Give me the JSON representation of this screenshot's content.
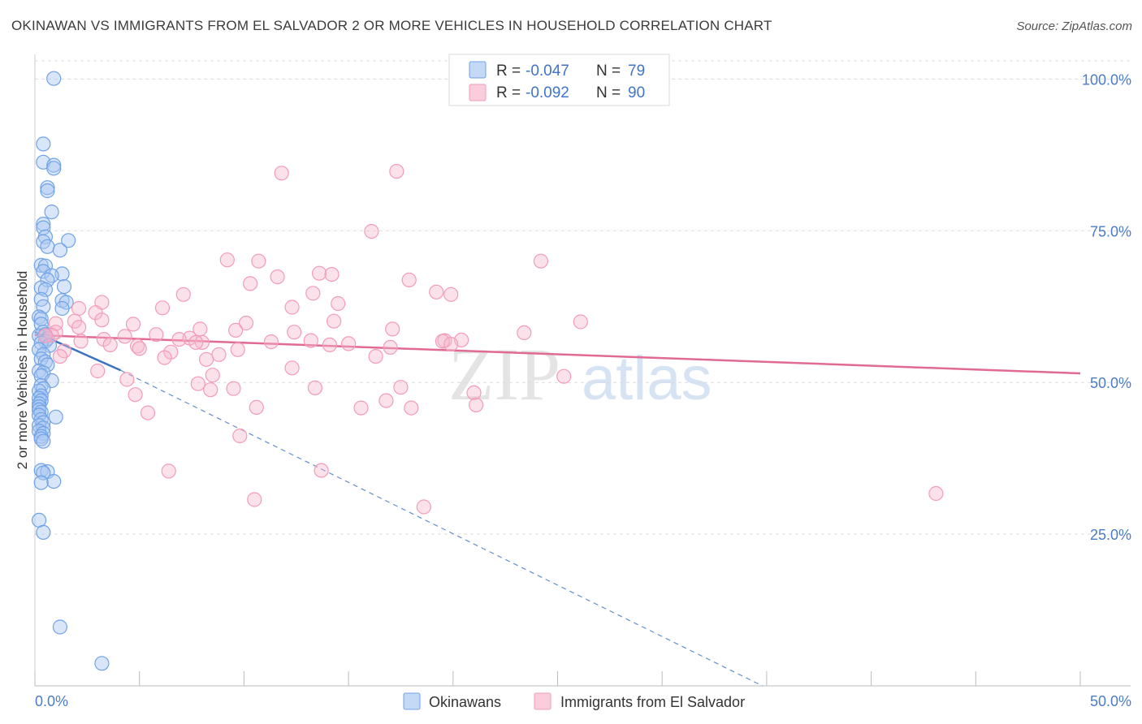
{
  "header": {
    "title": "OKINAWAN VS IMMIGRANTS FROM EL SALVADOR 2 OR MORE VEHICLES IN HOUSEHOLD CORRELATION CHART",
    "source": "Source: ZipAtlas.com"
  },
  "watermark": {
    "zip": "ZIP",
    "atlas": "atlas"
  },
  "chart_data": {
    "type": "scatter",
    "title": "OKINAWAN VS IMMIGRANTS FROM EL SALVADOR 2 OR MORE VEHICLES IN HOUSEHOLD CORRELATION CHART",
    "xlabel": "",
    "ylabel": "2 or more Vehicles in Household",
    "xlim": [
      0,
      50
    ],
    "ylim": [
      0,
      103
    ],
    "x_tick_labels": {
      "min": "0.0%",
      "max": "50.0%"
    },
    "y_ticks": [
      {
        "value": 25,
        "label": "25.0%"
      },
      {
        "value": 50,
        "label": "50.0%"
      },
      {
        "value": 75,
        "label": "75.0%"
      },
      {
        "value": 100,
        "label": "100.0%"
      }
    ],
    "grid": true,
    "legend_position": "top-center",
    "stats_legend": [
      {
        "r_label": "R = ",
        "r_value": "-0.047",
        "n_label": "N = ",
        "n_value": "79",
        "color": "#a9c9f1"
      },
      {
        "r_label": "R = ",
        "r_value": "-0.092",
        "n_label": "N = ",
        "n_value": "90",
        "color": "#f5b5c9"
      }
    ],
    "series": [
      {
        "name": "Okinawans",
        "color": "#6fa3e6",
        "line_color": "#3b72c4",
        "trend": {
          "x0": 0,
          "y0": 58.3,
          "x1": 4.1,
          "y1": 52.0,
          "dash_x1": 34.8,
          "dash_y1": 0
        },
        "points": [
          [
            0.9,
            100.1
          ],
          [
            0.4,
            89.3
          ],
          [
            0.4,
            86.3
          ],
          [
            0.9,
            85.8
          ],
          [
            0.9,
            85.3
          ],
          [
            0.6,
            82.1
          ],
          [
            0.6,
            81.6
          ],
          [
            0.8,
            78.1
          ],
          [
            0.4,
            76.1
          ],
          [
            0.4,
            75.5
          ],
          [
            0.5,
            74.0
          ],
          [
            1.6,
            73.4
          ],
          [
            0.4,
            73.2
          ],
          [
            0.6,
            72.4
          ],
          [
            1.2,
            71.8
          ],
          [
            0.3,
            69.3
          ],
          [
            0.5,
            69.2
          ],
          [
            0.4,
            68.3
          ],
          [
            1.3,
            67.9
          ],
          [
            0.8,
            67.6
          ],
          [
            0.6,
            66.9
          ],
          [
            0.3,
            65.6
          ],
          [
            0.5,
            65.3
          ],
          [
            1.4,
            65.8
          ],
          [
            0.3,
            63.7
          ],
          [
            1.3,
            63.5
          ],
          [
            1.5,
            63.2
          ],
          [
            0.4,
            62.5
          ],
          [
            1.3,
            62.2
          ],
          [
            0.2,
            60.8
          ],
          [
            0.3,
            60.5
          ],
          [
            0.3,
            59.6
          ],
          [
            0.4,
            58.3
          ],
          [
            0.2,
            57.7
          ],
          [
            0.5,
            57.9
          ],
          [
            0.6,
            57.2
          ],
          [
            0.5,
            56.8
          ],
          [
            0.3,
            56.5
          ],
          [
            0.7,
            56.1
          ],
          [
            0.2,
            55.4
          ],
          [
            0.4,
            54.6
          ],
          [
            0.3,
            53.9
          ],
          [
            0.5,
            53.4
          ],
          [
            0.6,
            52.9
          ],
          [
            0.2,
            51.9
          ],
          [
            0.4,
            51.6
          ],
          [
            0.3,
            51.1
          ],
          [
            0.8,
            50.3
          ],
          [
            0.3,
            49.5
          ],
          [
            0.4,
            49.0
          ],
          [
            0.2,
            48.6
          ],
          [
            0.3,
            47.8
          ],
          [
            0.2,
            47.4
          ],
          [
            0.3,
            47.0
          ],
          [
            0.2,
            46.5
          ],
          [
            0.2,
            46.0
          ],
          [
            0.2,
            45.5
          ],
          [
            0.3,
            45.1
          ],
          [
            0.2,
            44.6
          ],
          [
            1.0,
            44.3
          ],
          [
            0.3,
            43.9
          ],
          [
            0.4,
            43.4
          ],
          [
            0.2,
            42.9
          ],
          [
            0.4,
            42.5
          ],
          [
            0.2,
            42.0
          ],
          [
            0.4,
            41.6
          ],
          [
            0.3,
            41.1
          ],
          [
            0.3,
            40.7
          ],
          [
            0.4,
            40.3
          ],
          [
            0.3,
            35.5
          ],
          [
            0.6,
            35.3
          ],
          [
            0.4,
            35.1
          ],
          [
            0.9,
            33.7
          ],
          [
            0.3,
            33.5
          ],
          [
            0.2,
            27.3
          ],
          [
            0.4,
            25.3
          ],
          [
            1.2,
            9.7
          ],
          [
            3.2,
            3.7
          ]
        ]
      },
      {
        "name": "Immigrants from El Salvador",
        "color": "#f39bb9",
        "line_color": "#e06a93",
        "trend": {
          "x0": 0,
          "y0": 57.8,
          "x1": 50,
          "y1": 51.5
        },
        "points": [
          [
            11.8,
            84.5
          ],
          [
            17.3,
            84.8
          ],
          [
            16.1,
            74.9
          ],
          [
            9.2,
            70.2
          ],
          [
            10.7,
            70.0
          ],
          [
            24.2,
            70.0
          ],
          [
            11.6,
            67.4
          ],
          [
            13.6,
            68.0
          ],
          [
            14.2,
            67.8
          ],
          [
            10.3,
            66.3
          ],
          [
            17.9,
            66.9
          ],
          [
            7.1,
            64.5
          ],
          [
            13.3,
            64.7
          ],
          [
            19.2,
            64.9
          ],
          [
            19.9,
            64.5
          ],
          [
            3.2,
            63.2
          ],
          [
            14.5,
            63.0
          ],
          [
            2.1,
            62.2
          ],
          [
            6.1,
            62.3
          ],
          [
            12.3,
            62.4
          ],
          [
            2.9,
            61.5
          ],
          [
            1.9,
            60.1
          ],
          [
            3.2,
            60.3
          ],
          [
            14.3,
            60.1
          ],
          [
            26.1,
            60.0
          ],
          [
            1.0,
            59.7
          ],
          [
            4.7,
            59.6
          ],
          [
            10.1,
            59.8
          ],
          [
            2.1,
            59.1
          ],
          [
            7.9,
            58.8
          ],
          [
            9.6,
            58.6
          ],
          [
            12.4,
            58.3
          ],
          [
            17.1,
            58.8
          ],
          [
            23.4,
            58.2
          ],
          [
            1.0,
            58.3
          ],
          [
            0.8,
            57.8
          ],
          [
            5.8,
            57.9
          ],
          [
            4.3,
            57.6
          ],
          [
            0.5,
            57.7
          ],
          [
            7.4,
            57.3
          ],
          [
            13.2,
            56.9
          ],
          [
            3.3,
            57.1
          ],
          [
            2.2,
            56.8
          ],
          [
            8.0,
            56.6
          ],
          [
            15.0,
            56.4
          ],
          [
            19.6,
            56.9
          ],
          [
            20.4,
            57.0
          ],
          [
            6.9,
            57.1
          ],
          [
            7.7,
            56.6
          ],
          [
            3.6,
            56.2
          ],
          [
            11.3,
            56.7
          ],
          [
            4.9,
            56.0
          ],
          [
            5.0,
            55.6
          ],
          [
            14.1,
            56.2
          ],
          [
            19.5,
            56.8
          ],
          [
            19.9,
            56.3
          ],
          [
            17.0,
            55.8
          ],
          [
            1.4,
            55.2
          ],
          [
            9.7,
            55.4
          ],
          [
            6.5,
            55.0
          ],
          [
            8.8,
            54.6
          ],
          [
            1.2,
            54.3
          ],
          [
            16.3,
            54.3
          ],
          [
            6.2,
            54.1
          ],
          [
            8.2,
            53.8
          ],
          [
            12.3,
            52.4
          ],
          [
            3.0,
            51.9
          ],
          [
            8.5,
            51.2
          ],
          [
            25.3,
            51.0
          ],
          [
            4.4,
            50.5
          ],
          [
            7.8,
            49.8
          ],
          [
            13.4,
            49.1
          ],
          [
            8.4,
            48.8
          ],
          [
            9.5,
            49.0
          ],
          [
            17.5,
            49.2
          ],
          [
            21.0,
            48.3
          ],
          [
            4.8,
            48.0
          ],
          [
            16.8,
            47.0
          ],
          [
            21.1,
            46.3
          ],
          [
            10.6,
            45.9
          ],
          [
            15.6,
            45.8
          ],
          [
            18.0,
            45.8
          ],
          [
            5.4,
            45.0
          ],
          [
            9.8,
            41.2
          ],
          [
            6.4,
            35.4
          ],
          [
            13.7,
            35.5
          ],
          [
            10.5,
            30.7
          ],
          [
            18.6,
            29.5
          ],
          [
            43.1,
            31.7
          ]
        ]
      }
    ]
  }
}
